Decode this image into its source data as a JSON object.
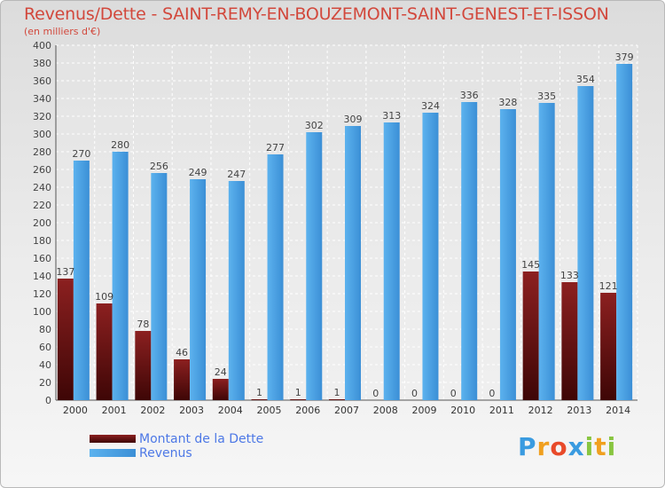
{
  "header": {
    "title": "Revenus/Dette - SAINT-REMY-EN-BOUZEMONT-SAINT-GENEST-ET-ISSON",
    "subtitle": "(en milliers d'€)"
  },
  "legend": {
    "items": [
      {
        "label": "Montant de la Dette",
        "color": "#7a1010"
      },
      {
        "label": "Revenus",
        "color": "#4aa2e4"
      }
    ]
  },
  "brand": {
    "letters": [
      {
        "ch": "P",
        "color": "#3a9be0"
      },
      {
        "ch": "r",
        "color": "#f0a020"
      },
      {
        "ch": "o",
        "color": "#e84a2a"
      },
      {
        "ch": "x",
        "color": "#3a9be0"
      },
      {
        "ch": "i",
        "color": "#88c540"
      },
      {
        "ch": "t",
        "color": "#f0a020"
      },
      {
        "ch": "i",
        "color": "#88c540"
      }
    ]
  },
  "chart_data": {
    "type": "bar",
    "categories": [
      "2000",
      "2001",
      "2002",
      "2003",
      "2004",
      "2005",
      "2006",
      "2007",
      "2008",
      "2009",
      "2010",
      "2011",
      "2012",
      "2013",
      "2014"
    ],
    "series": [
      {
        "name": "Montant de la Dette",
        "color": "#7a1010",
        "values": [
          137,
          109,
          78,
          46,
          24,
          1,
          1,
          1,
          0,
          0,
          0,
          0,
          145,
          133,
          121
        ]
      },
      {
        "name": "Revenus",
        "color": "#4aa2e4",
        "values": [
          270,
          280,
          256,
          249,
          247,
          277,
          302,
          309,
          313,
          324,
          336,
          328,
          335,
          354,
          379
        ]
      }
    ],
    "ylim": [
      0,
      400
    ],
    "yticks": [
      0,
      20,
      40,
      60,
      80,
      100,
      120,
      140,
      160,
      180,
      200,
      220,
      240,
      260,
      280,
      300,
      320,
      340,
      360,
      380,
      400
    ],
    "grid": true,
    "legend_position": "bottom-left"
  }
}
